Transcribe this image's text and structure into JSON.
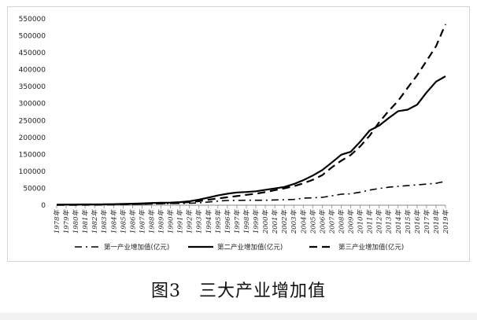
{
  "caption": "图3　三大产业增加值",
  "chart_data": {
    "type": "line",
    "title": "",
    "xlabel": "",
    "ylabel": "",
    "ylim": [
      0,
      550000
    ],
    "y_ticks": [
      0,
      50000,
      100000,
      150000,
      200000,
      250000,
      300000,
      350000,
      400000,
      450000,
      500000,
      550000
    ],
    "grid": false,
    "legend_position": "bottom",
    "categories": [
      "1978年",
      "1979年",
      "1980年",
      "1981年",
      "1982年",
      "1983年",
      "1984年",
      "1985年",
      "1986年",
      "1987年",
      "1988年",
      "1989年",
      "1990年",
      "1991年",
      "1992年",
      "1993年",
      "1994年",
      "1995年",
      "1996年",
      "1997年",
      "1998年",
      "1999年",
      "2000年",
      "2001年",
      "2002年",
      "2003年",
      "2004年",
      "2005年",
      "2006年",
      "2007年",
      "2008年",
      "2009年",
      "2010年",
      "2011年",
      "2012年",
      "2013年",
      "2014年",
      "2015年",
      "2016年",
      "2017年",
      "2018年",
      "2019年"
    ],
    "series": [
      {
        "name": "第一产业增加值(亿元)",
        "line_style": "dash-dot",
        "color": "#000000",
        "values": [
          1018,
          1259,
          1359,
          1546,
          1762,
          1960,
          2295,
          2541,
          2764,
          3204,
          3831,
          4228,
          5017,
          5288,
          5800,
          6887,
          9471,
          12020,
          13878,
          14265,
          14618,
          14548,
          14717,
          15502,
          16190,
          16970,
          20904,
          21807,
          23317,
          27674,
          32464,
          33584,
          38430,
          44781,
          49085,
          53028,
          55626,
          57774,
          60139,
          62100,
          64745,
          70467
        ]
      },
      {
        "name": "第二产业增加值(亿元)",
        "line_style": "solid",
        "color": "#000000",
        "values": [
          1755,
          1925,
          2204,
          2256,
          2383,
          2646,
          3106,
          3867,
          4493,
          5252,
          6587,
          7278,
          7717,
          9102,
          11700,
          16454,
          22445,
          28679,
          33835,
          37543,
          39004,
          41033,
          45556,
          49512,
          53897,
          62436,
          73904,
          87598,
          103720,
          125831,
          149003,
          157639,
          187383,
          220413,
          235162,
          256810,
          277572,
          282040,
          296548,
          332743,
          364835,
          380671
        ]
      },
      {
        "name": "第三产业增加值(亿元)",
        "line_style": "dashed",
        "color": "#000000",
        "values": [
          905,
          878,
          982,
          1077,
          1226,
          1446,
          1875,
          2585,
          3106,
          3739,
          4693,
          5449,
          5889,
          7337,
          9357,
          11916,
          16180,
          19978,
          23326,
          26988,
          30580,
          33873,
          38714,
          44362,
          49899,
          56005,
          64561,
          74919,
          88555,
          111352,
          131340,
          148038,
          173596,
          205205,
          244822,
          277979,
          308059,
          346150,
          383374,
          425912,
          469575,
          534233
        ]
      }
    ]
  }
}
